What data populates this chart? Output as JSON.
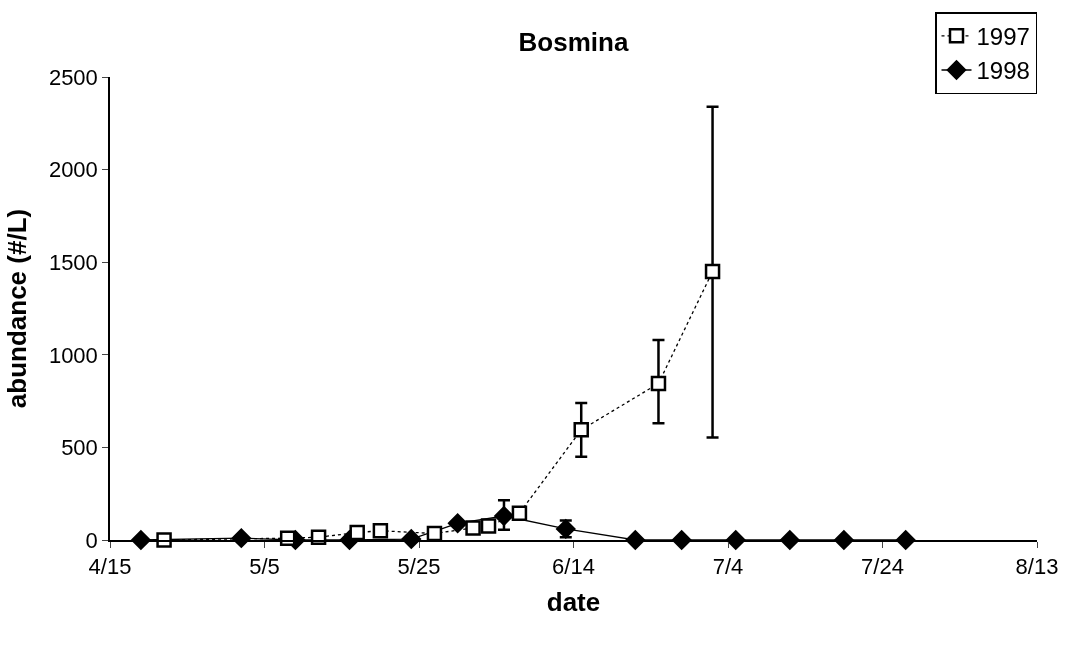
{
  "chart_data": {
    "type": "line",
    "title": "Bosmina",
    "xlabel": "date",
    "ylabel": "abundance (#/L)",
    "series": [
      {
        "name": "1997",
        "color": "#000000",
        "marker": "square",
        "line_style": "dotted",
        "x": [
          "--04-22",
          "--05-08",
          "--05-12",
          "--05-17",
          "--05-20",
          "--05-27",
          "--06-01",
          "--06-03",
          "--06-07",
          "--06-15",
          "--06-25",
          "--07-02"
        ],
        "values": [
          0,
          10,
          15,
          40,
          50,
          35,
          65,
          75,
          145,
          595,
          845,
          1450
        ],
        "errors": [
          null,
          null,
          null,
          null,
          null,
          null,
          null,
          null,
          null,
          [
            450,
            740
          ],
          [
            630,
            1080
          ],
          [
            553,
            2340
          ]
        ]
      },
      {
        "name": "1998",
        "color": "#000000",
        "marker": "diamond",
        "line_style": "solid",
        "x": [
          "--04-19",
          "--05-02",
          "--05-09",
          "--05-16",
          "--05-24",
          "--05-30",
          "--06-05",
          "--06-13",
          "--06-22",
          "--06-28",
          "--07-05",
          "--07-12",
          "--07-19",
          "--07-27"
        ],
        "values": [
          0,
          10,
          0,
          0,
          5,
          90,
          130,
          60,
          0,
          0,
          0,
          0,
          0,
          0
        ],
        "errors": [
          null,
          null,
          null,
          null,
          null,
          null,
          [
            55,
            215
          ],
          [
            15,
            105
          ],
          null,
          null,
          null,
          null,
          null,
          null
        ]
      }
    ],
    "xlim": [
      "--04-15",
      "--08-13"
    ],
    "xticks": [
      {
        "value": "--04-15",
        "label": "4/15"
      },
      {
        "value": "--05-05",
        "label": "5/5"
      },
      {
        "value": "--05-25",
        "label": "5/25"
      },
      {
        "value": "--06-14",
        "label": "6/14"
      },
      {
        "value": "--07-04",
        "label": "7/4"
      },
      {
        "value": "--07-24",
        "label": "7/24"
      },
      {
        "value": "--08-13",
        "label": "8/13"
      }
    ],
    "ylim": [
      0,
      2500
    ],
    "yticks": [
      0,
      500,
      1000,
      1500,
      2000,
      2500
    ],
    "legend": "top right"
  }
}
